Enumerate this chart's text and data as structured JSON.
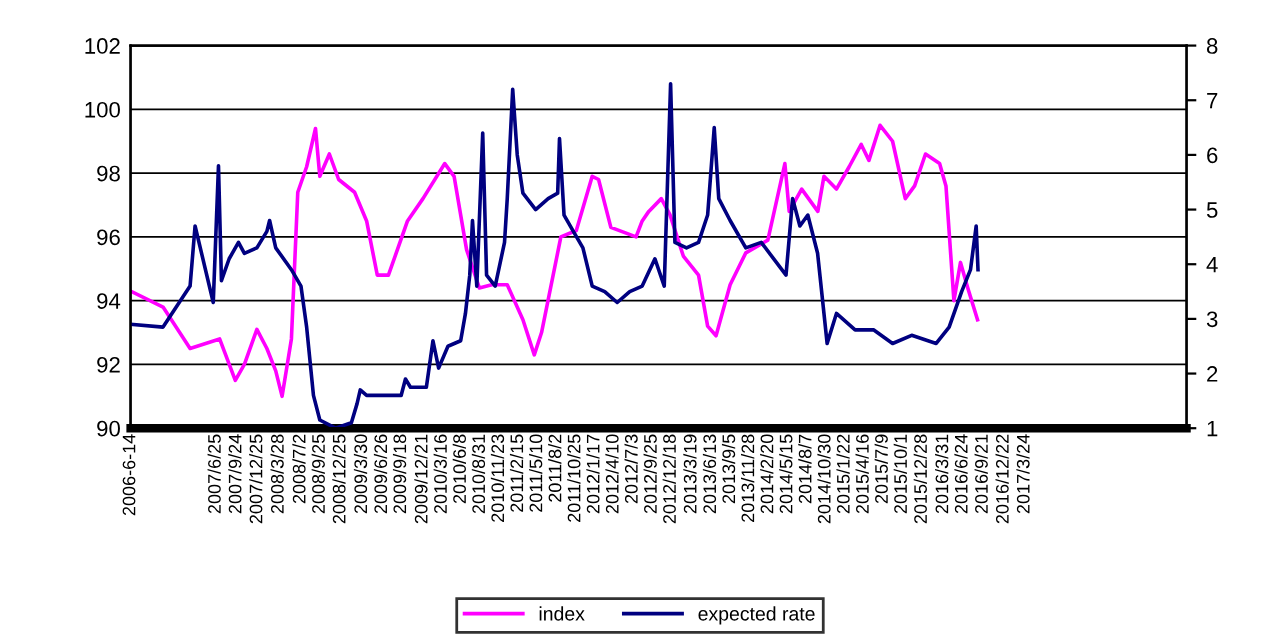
{
  "chart_data": {
    "type": "line",
    "legend": "bottom",
    "grid": "y",
    "marker": "none",
    "line_style": "solid",
    "xlim": [
      "2006-06-14",
      "2019-03-06"
    ],
    "xticks": [
      {
        "value": "2006-06-14",
        "label": "2006-6-14"
      },
      {
        "value": "2007-06-25",
        "label": "2007/6/25"
      },
      {
        "value": "2007-09-24",
        "label": "2007/9/24"
      },
      {
        "value": "2007-12-25",
        "label": "2007/12/25"
      },
      {
        "value": "2008-03-28",
        "label": "2008/3/28"
      },
      {
        "value": "2008-07-02",
        "label": "2008/7/2"
      },
      {
        "value": "2008-09-25",
        "label": "2008/9/25"
      },
      {
        "value": "2008-12-25",
        "label": "2008/12/25"
      },
      {
        "value": "2009-03-30",
        "label": "2009/3/30"
      },
      {
        "value": "2009-06-26",
        "label": "2009/6/26"
      },
      {
        "value": "2009-09-18",
        "label": "2009/9/18"
      },
      {
        "value": "2009-12-21",
        "label": "2009/12/21"
      },
      {
        "value": "2010-03-16",
        "label": "2010/3/16"
      },
      {
        "value": "2010-06-08",
        "label": "2010/6/8"
      },
      {
        "value": "2010-08-31",
        "label": "2010/8/31"
      },
      {
        "value": "2010-11-23",
        "label": "2010/11/23"
      },
      {
        "value": "2011-02-15",
        "label": "2011/2/15"
      },
      {
        "value": "2011-05-10",
        "label": "2011/5/10"
      },
      {
        "value": "2011-08-02",
        "label": "2011/8/2"
      },
      {
        "value": "2011-10-25",
        "label": "2011/10/25"
      },
      {
        "value": "2012-01-17",
        "label": "2012/1/17"
      },
      {
        "value": "2012-04-10",
        "label": "2012/4/10"
      },
      {
        "value": "2012-07-03",
        "label": "2012/7/3"
      },
      {
        "value": "2012-09-25",
        "label": "2012/9/25"
      },
      {
        "value": "2012-12-18",
        "label": "2012/12/18"
      },
      {
        "value": "2013-03-19",
        "label": "2013/3/19"
      },
      {
        "value": "2013-06-13",
        "label": "2013/6/13"
      },
      {
        "value": "2013-09-05",
        "label": "2013/9/5"
      },
      {
        "value": "2013-11-28",
        "label": "2013/11/28"
      },
      {
        "value": "2014-02-20",
        "label": "2014/2/20"
      },
      {
        "value": "2014-05-15",
        "label": "2014/5/15"
      },
      {
        "value": "2014-08-07",
        "label": "2014/8/7"
      },
      {
        "value": "2014-10-30",
        "label": "2014/10/30"
      },
      {
        "value": "2015-01-22",
        "label": "2015/1/22"
      },
      {
        "value": "2015-04-16",
        "label": "2015/4/16"
      },
      {
        "value": "2015-07-09",
        "label": "2015/7/9"
      },
      {
        "value": "2015-10-01",
        "label": "2015/10/1"
      },
      {
        "value": "2015-12-28",
        "label": "2015/12/28"
      },
      {
        "value": "2016-03-31",
        "label": "2016/3/31"
      },
      {
        "value": "2016-06-24",
        "label": "2016/6/24"
      },
      {
        "value": "2016-09-21",
        "label": "2016/9/21"
      },
      {
        "value": "2016-12-22",
        "label": "2016/12/22"
      },
      {
        "value": "2017-03-24",
        "label": "2017/3/24"
      }
    ],
    "ylim": [
      90,
      102
    ],
    "yticks": [
      90,
      92,
      94,
      96,
      98,
      100,
      102
    ],
    "y2lim": [
      1,
      8
    ],
    "y2ticks": [
      1,
      2,
      3,
      4,
      5,
      6,
      7,
      8
    ],
    "series": [
      {
        "name": "index",
        "color": "#ff00ff",
        "x": [
          "2006-06-14",
          "2006-11-04",
          "2007-03-03",
          "2007-07-11",
          "2007-09-18",
          "2007-10-28",
          "2007-12-22",
          "2008-02-04",
          "2008-03-14",
          "2008-04-11",
          "2008-05-22",
          "2008-06-19",
          "2008-07-28",
          "2008-09-05",
          "2008-09-24",
          "2008-11-05",
          "2008-12-16",
          "2009-02-24",
          "2009-04-18",
          "2009-06-04",
          "2009-07-23",
          "2009-10-15",
          "2009-12-22",
          "2010-03-28",
          "2010-05-08",
          "2010-07-02",
          "2010-08-27",
          "2010-10-21",
          "2010-12-28",
          "2011-03-07",
          "2011-04-26",
          "2011-05-28",
          "2011-08-21",
          "2011-10-28",
          "2012-01-06",
          "2012-02-03",
          "2012-03-28",
          "2012-07-17",
          "2012-08-13",
          "2012-09-11",
          "2012-11-05",
          "2012-12-13",
          "2013-02-10",
          "2013-04-18",
          "2013-05-28",
          "2013-07-04",
          "2013-09-04",
          "2013-11-12",
          "2014-02-17",
          "2014-05-03",
          "2014-05-22",
          "2014-07-16",
          "2014-09-25",
          "2014-10-22",
          "2014-12-16",
          "2015-02-10",
          "2015-04-04",
          "2015-05-08",
          "2015-06-26",
          "2015-08-20",
          "2015-10-15",
          "2015-11-25",
          "2016-01-12",
          "2016-03-14",
          "2016-04-11",
          "2016-05-16",
          "2016-06-14",
          "2016-07-16",
          "2016-08-28"
        ],
        "values": [
          94.3,
          93.8,
          92.5,
          92.8,
          91.5,
          92.0,
          93.1,
          92.5,
          91.8,
          91.0,
          92.8,
          97.4,
          98.2,
          99.4,
          97.9,
          98.6,
          97.8,
          97.4,
          96.5,
          94.8,
          94.8,
          96.5,
          97.2,
          98.3,
          97.9,
          95.6,
          94.4,
          94.5,
          94.5,
          93.4,
          92.3,
          93.0,
          96.0,
          96.2,
          97.9,
          97.8,
          96.3,
          96.0,
          96.5,
          96.8,
          97.2,
          96.7,
          95.4,
          94.8,
          93.2,
          92.9,
          94.5,
          95.5,
          95.9,
          98.3,
          96.8,
          97.5,
          96.8,
          97.9,
          97.5,
          98.2,
          98.9,
          98.4,
          99.5,
          99.0,
          97.2,
          97.6,
          98.6,
          98.3,
          97.6,
          94.0,
          95.2,
          94.4,
          93.4
        ]
      },
      {
        "name": "expected rate",
        "color": "#000080",
        "axis": "y2",
        "x": [
          "2006-06-14",
          "2006-11-04",
          "2007-03-03",
          "2007-03-25",
          "2007-06-13",
          "2007-07-06",
          "2007-07-19",
          "2007-08-22",
          "2007-10-02",
          "2007-10-28",
          "2007-12-22",
          "2008-02-04",
          "2008-02-16",
          "2008-03-14",
          "2008-05-22",
          "2008-07-03",
          "2008-07-28",
          "2008-08-27",
          "2008-09-24",
          "2008-12-02",
          "2009-02-10",
          "2009-03-07",
          "2009-03-21",
          "2009-04-18",
          "2009-06-12",
          "2009-09-17",
          "2009-10-06",
          "2009-10-28",
          "2010-01-06",
          "2010-02-04",
          "2010-03-01",
          "2010-04-11",
          "2010-06-06",
          "2010-06-27",
          "2010-07-16",
          "2010-07-28",
          "2010-08-16",
          "2010-09-11",
          "2010-09-28",
          "2010-11-05",
          "2010-12-16",
          "2010-12-28",
          "2011-01-21",
          "2011-02-10",
          "2011-03-07",
          "2011-05-02",
          "2011-06-26",
          "2011-08-07",
          "2011-08-15",
          "2011-09-04",
          "2011-10-15",
          "2011-11-26",
          "2012-01-06",
          "2012-03-01",
          "2012-04-25",
          "2012-06-19",
          "2012-08-13",
          "2012-10-08",
          "2012-11-18",
          "2012-12-16",
          "2013-01-04",
          "2013-02-24",
          "2013-04-18",
          "2013-05-28",
          "2013-06-26",
          "2013-07-16",
          "2013-09-04",
          "2013-11-12",
          "2014-01-19",
          "2014-05-08",
          "2014-06-06",
          "2014-07-08",
          "2014-08-12",
          "2014-09-24",
          "2014-11-05",
          "2014-12-16",
          "2015-03-08",
          "2015-05-28",
          "2015-08-20",
          "2015-11-12",
          "2016-02-28",
          "2016-04-25",
          "2016-06-19",
          "2016-07-28",
          "2016-08-22",
          "2016-08-30"
        ],
        "values": [
          2.9,
          2.85,
          3.6,
          4.7,
          3.3,
          5.8,
          3.7,
          4.1,
          4.4,
          4.2,
          4.3,
          4.6,
          4.8,
          4.3,
          3.9,
          3.6,
          2.85,
          1.6,
          1.15,
          1.0,
          1.1,
          1.45,
          1.7,
          1.6,
          1.6,
          1.6,
          1.9,
          1.75,
          1.75,
          2.6,
          2.1,
          2.5,
          2.6,
          3.1,
          3.8,
          4.8,
          3.6,
          6.4,
          3.8,
          3.6,
          4.4,
          5.2,
          7.2,
          6.0,
          5.3,
          5.0,
          5.2,
          5.3,
          6.3,
          4.9,
          4.6,
          4.3,
          3.6,
          3.5,
          3.3,
          3.5,
          3.6,
          4.1,
          3.6,
          7.3,
          4.4,
          4.3,
          4.4,
          4.9,
          6.5,
          5.2,
          4.8,
          4.3,
          4.4,
          3.8,
          5.2,
          4.7,
          4.9,
          4.2,
          2.55,
          3.1,
          2.8,
          2.8,
          2.55,
          2.7,
          2.55,
          2.85,
          3.5,
          3.9,
          4.7,
          3.9
        ]
      }
    ]
  }
}
